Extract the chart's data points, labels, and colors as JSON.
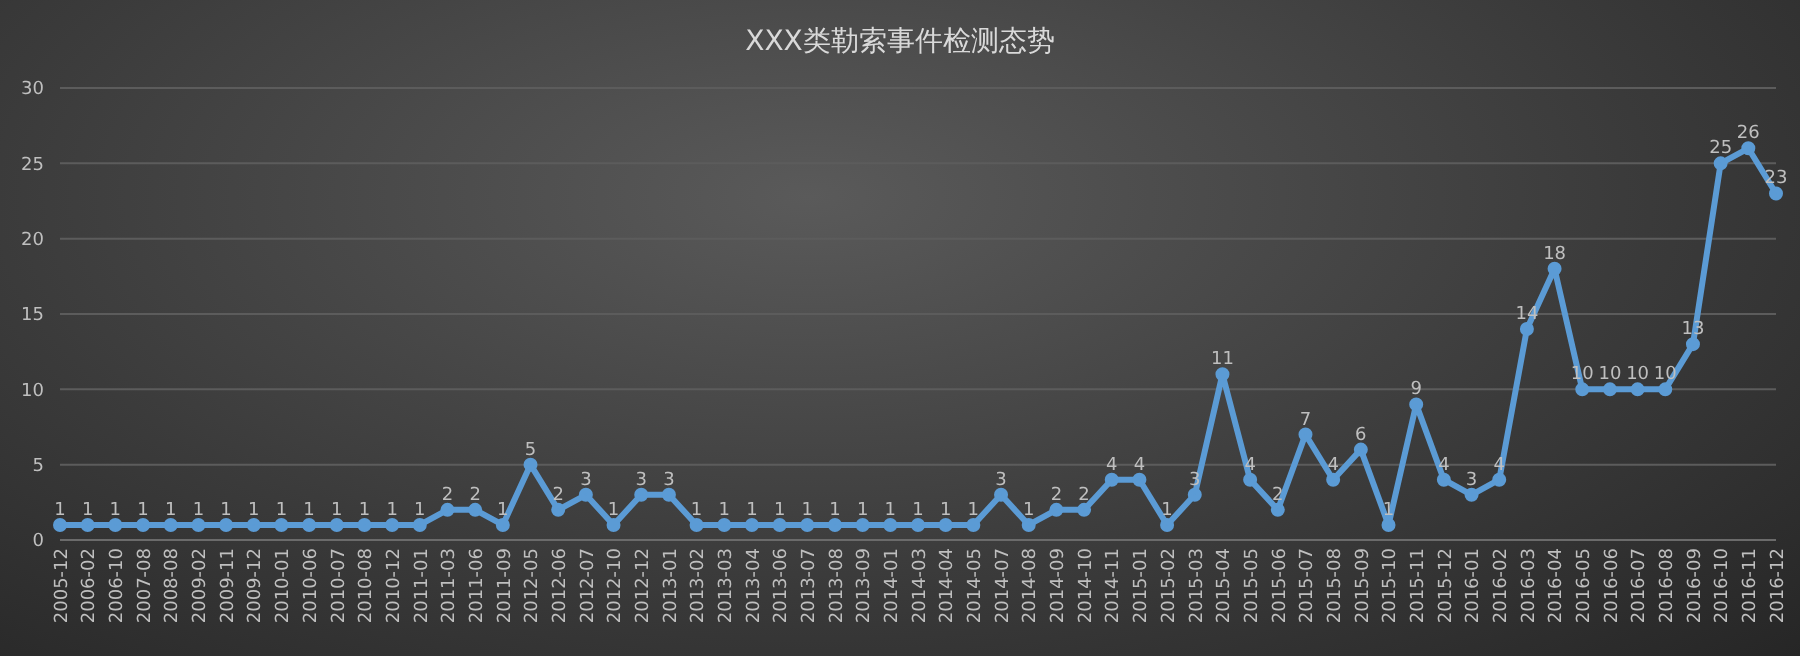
{
  "chart_data": {
    "type": "line",
    "title": "XXX类勒索事件检测态势",
    "categories": [
      "2005-12",
      "2006-02",
      "2006-10",
      "2007-08",
      "2008-08",
      "2009-02",
      "2009-11",
      "2009-12",
      "2010-01",
      "2010-06",
      "2010-07",
      "2010-08",
      "2010-12",
      "2011-01",
      "2011-03",
      "2011-06",
      "2011-09",
      "2012-05",
      "2012-06",
      "2012-07",
      "2012-10",
      "2012-12",
      "2013-01",
      "2013-02",
      "2013-03",
      "2013-04",
      "2013-06",
      "2013-07",
      "2013-08",
      "2013-09",
      "2014-01",
      "2014-03",
      "2014-04",
      "2014-05",
      "2014-07",
      "2014-08",
      "2014-09",
      "2014-10",
      "2014-11",
      "2015-01",
      "2015-02",
      "2015-03",
      "2015-04",
      "2015-05",
      "2015-06",
      "2015-07",
      "2015-08",
      "2015-09",
      "2015-10",
      "2015-11",
      "2015-12",
      "2016-01",
      "2016-02",
      "2016-03",
      "2016-04",
      "2016-05",
      "2016-06",
      "2016-07",
      "2016-08",
      "2016-09",
      "2016-10",
      "2016-11",
      "2016-12"
    ],
    "series": [
      {
        "color": "#5b9bd5",
        "values": [
          1,
          1,
          1,
          1,
          1,
          1,
          1,
          1,
          1,
          1,
          1,
          1,
          1,
          1,
          2,
          2,
          1,
          5,
          2,
          3,
          1,
          3,
          3,
          1,
          1,
          1,
          1,
          1,
          1,
          1,
          1,
          1,
          1,
          1,
          3,
          1,
          2,
          2,
          4,
          4,
          1,
          3,
          11,
          4,
          2,
          7,
          4,
          6,
          1,
          9,
          4,
          3,
          4,
          14,
          18,
          10,
          10,
          10,
          10,
          13,
          25,
          26,
          23
        ]
      }
    ],
    "ylim": [
      0,
      30
    ],
    "yticks": [
      0,
      5,
      10,
      15,
      20,
      25,
      30
    ],
    "grid": "y",
    "marker": "circle",
    "line_style": "solid",
    "data_labels": true
  }
}
